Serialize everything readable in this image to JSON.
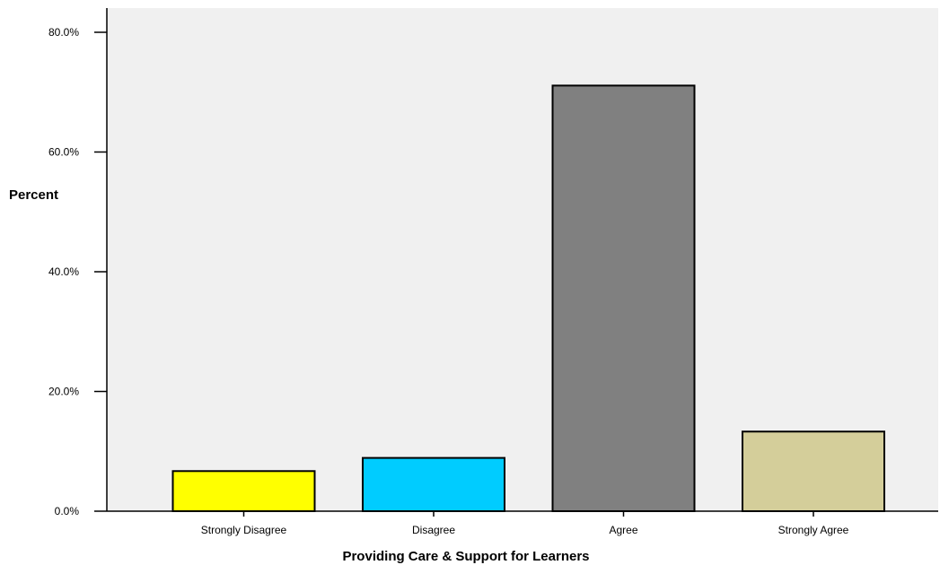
{
  "chart_data": {
    "type": "bar",
    "categories": [
      "Strongly Disagree",
      "Disagree",
      "Agree",
      "Strongly Agree"
    ],
    "values": [
      6.7,
      8.9,
      71.1,
      13.3
    ],
    "colors": [
      "#ffff00",
      "#00ccff",
      "#808080",
      "#d4ce9a"
    ],
    "xlabel": "Providing Care & Support for Learners",
    "ylabel": "Percent",
    "ylim": [
      0,
      80
    ],
    "yticks": [
      0,
      20,
      40,
      60,
      80
    ],
    "ytick_labels": [
      "0.0%",
      "20.0%",
      "40.0%",
      "60.0%",
      "80.0%"
    ],
    "plot_background": "#f0f0f0",
    "grid": false,
    "legend": "none"
  }
}
